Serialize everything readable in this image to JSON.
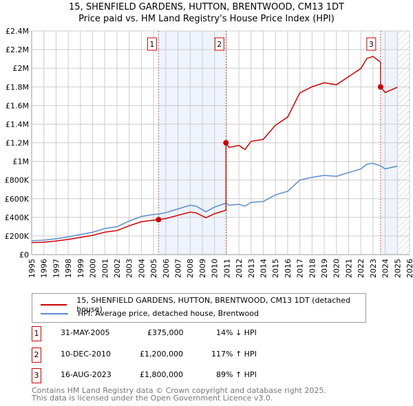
{
  "title": "15, SHENFIELD GARDENS, HUTTON, BRENTWOOD, CM13 1DT",
  "subtitle": "Price paid vs. HM Land Registry's House Price Index (HPI)",
  "chart_data": {
    "type": "line",
    "xlim": [
      1995,
      2026
    ],
    "ylim": [
      0,
      2400000
    ],
    "yticks": [
      {
        "v": 0,
        "l": "£0"
      },
      {
        "v": 200000,
        "l": "£200K"
      },
      {
        "v": 400000,
        "l": "£400K"
      },
      {
        "v": 600000,
        "l": "£600K"
      },
      {
        "v": 800000,
        "l": "£800K"
      },
      {
        "v": 1000000,
        "l": "£1M"
      },
      {
        "v": 1200000,
        "l": "£1.2M"
      },
      {
        "v": 1400000,
        "l": "£1.4M"
      },
      {
        "v": 1600000,
        "l": "£1.6M"
      },
      {
        "v": 1800000,
        "l": "£1.8M"
      },
      {
        "v": 2000000,
        "l": "£2M"
      },
      {
        "v": 2200000,
        "l": "£2.2M"
      },
      {
        "v": 2400000,
        "l": "£2.4M"
      }
    ],
    "xticks": [
      "1995",
      "1996",
      "1997",
      "1998",
      "1999",
      "2000",
      "2001",
      "2002",
      "2003",
      "2004",
      "2005",
      "2006",
      "2007",
      "2008",
      "2009",
      "2010",
      "2011",
      "2012",
      "2013",
      "2014",
      "2015",
      "2016",
      "2017",
      "2018",
      "2019",
      "2020",
      "2021",
      "2022",
      "2023",
      "2024",
      "2025",
      "2026"
    ],
    "hpi": {
      "name": "HPI: Average price, detached house, Brentwood",
      "color": "#5b8ccf",
      "x": [
        1995,
        1996,
        1997,
        1998,
        1999,
        2000,
        2001,
        2002,
        2003,
        2004,
        2005,
        2005.41,
        2006,
        2007,
        2008,
        2008.5,
        2009.3,
        2010,
        2010.94,
        2011.2,
        2012,
        2012.5,
        2013,
        2014,
        2015,
        2016,
        2017,
        2018,
        2019,
        2020,
        2021,
        2022,
        2022.5,
        2023,
        2023.62,
        2024,
        2025
      ],
      "y": [
        150000,
        155000,
        170000,
        190000,
        215000,
        240000,
        280000,
        300000,
        360000,
        410000,
        430000,
        436000,
        450000,
        490000,
        530000,
        520000,
        460000,
        510000,
        553000,
        530000,
        540000,
        520000,
        560000,
        570000,
        640000,
        680000,
        800000,
        830000,
        850000,
        840000,
        880000,
        920000,
        970000,
        980000,
        952000,
        920000,
        950000
      ]
    },
    "property": {
      "name": "15, SHENFIELD GARDENS, HUTTON, BRENTWOOD, CM13 1DT (detached house)",
      "color": "#cc0000"
    },
    "sales": [
      {
        "n": "1",
        "date": "31-MAY-2005",
        "x": 2005.41,
        "price": 375000,
        "price_label": "£375,000",
        "hpi": "14% ↓ HPI"
      },
      {
        "n": "2",
        "date": "10-DEC-2010",
        "x": 2010.94,
        "price": 1200000,
        "price_label": "£1,200,000",
        "hpi": "117% ↑ HPI"
      },
      {
        "n": "3",
        "date": "16-AUG-2023",
        "x": 2023.62,
        "price": 1800000,
        "price_label": "£1,800,000",
        "hpi": "89% ↑ HPI"
      }
    ],
    "data_end": 2025.1
  },
  "footer1": "Contains HM Land Registry data © Crown copyright and database right 2025.",
  "footer2": "This data is licensed under the Open Government Licence v3.0."
}
